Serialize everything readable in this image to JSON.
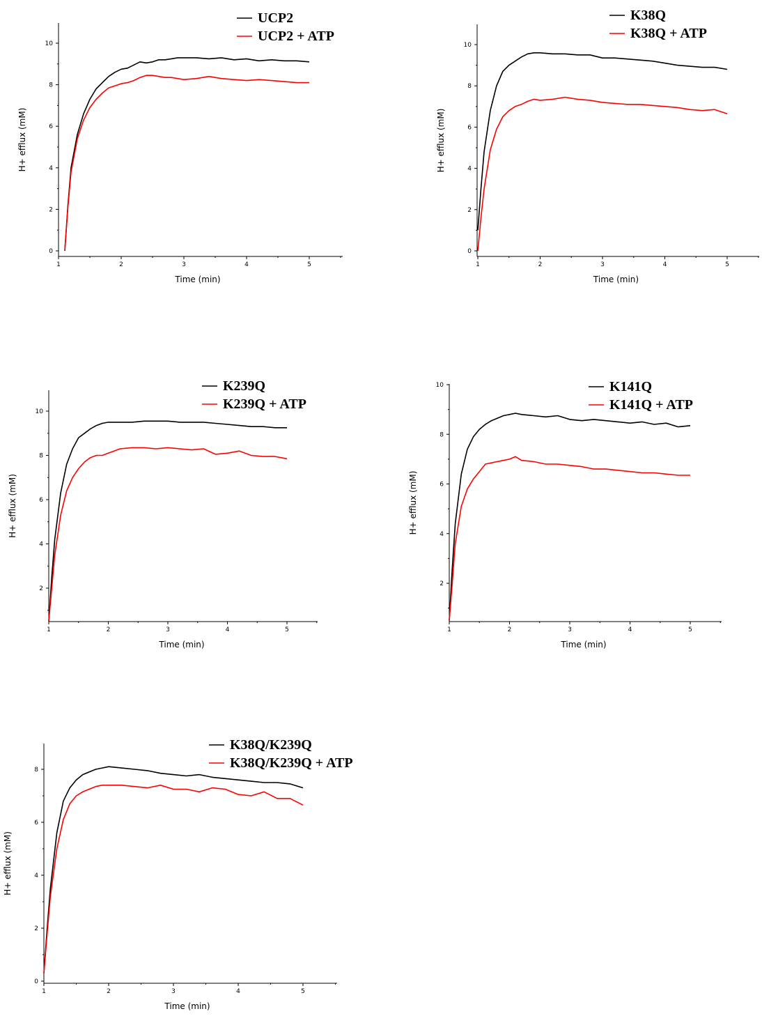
{
  "chart_data": [
    {
      "type": "line",
      "xlabel": "Time (min)",
      "ylabel": "H+ efflux (mM)",
      "xlim": [
        1,
        5.5
      ],
      "ylim": [
        0,
        11
      ],
      "xticks": [
        1,
        2,
        3,
        4,
        5
      ],
      "yticks": [
        0,
        2,
        4,
        6,
        8,
        10
      ],
      "legend_position": "top-right",
      "series": [
        {
          "name": "UCP2",
          "color": "#000000",
          "x": [
            1.1,
            1.15,
            1.2,
            1.3,
            1.4,
            1.5,
            1.6,
            1.7,
            1.8,
            1.9,
            2.0,
            2.1,
            2.2,
            2.3,
            2.4,
            2.5,
            2.6,
            2.7,
            2.8,
            2.9,
            3.0,
            3.2,
            3.4,
            3.6,
            3.8,
            4.0,
            4.2,
            4.4,
            4.6,
            4.8,
            5.0
          ],
          "y": [
            0,
            2.2,
            4.0,
            5.6,
            6.6,
            7.3,
            7.8,
            8.1,
            8.4,
            8.6,
            8.75,
            8.8,
            8.95,
            9.1,
            9.05,
            9.1,
            9.2,
            9.2,
            9.25,
            9.3,
            9.3,
            9.3,
            9.25,
            9.3,
            9.2,
            9.25,
            9.15,
            9.2,
            9.15,
            9.15,
            9.1
          ]
        },
        {
          "name": "UCP2 + ATP",
          "color": "#ff0000",
          "x": [
            1.1,
            1.15,
            1.2,
            1.3,
            1.4,
            1.5,
            1.6,
            1.7,
            1.8,
            1.9,
            2.0,
            2.1,
            2.2,
            2.3,
            2.4,
            2.5,
            2.6,
            2.7,
            2.8,
            2.9,
            3.0,
            3.2,
            3.4,
            3.6,
            3.8,
            4.0,
            4.2,
            4.4,
            4.6,
            4.8,
            5.0
          ],
          "y": [
            0,
            2.1,
            3.8,
            5.4,
            6.3,
            6.9,
            7.3,
            7.6,
            7.85,
            7.95,
            8.05,
            8.1,
            8.2,
            8.35,
            8.45,
            8.45,
            8.4,
            8.35,
            8.35,
            8.3,
            8.25,
            8.3,
            8.4,
            8.3,
            8.25,
            8.2,
            8.25,
            8.2,
            8.15,
            8.1,
            8.1
          ]
        }
      ]
    },
    {
      "type": "line",
      "xlabel": "Time (min)",
      "ylabel": "H+ efflux (mM)",
      "xlim": [
        1,
        5.5
      ],
      "ylim": [
        0,
        11
      ],
      "xticks": [
        1,
        2,
        3,
        4,
        5
      ],
      "yticks": [
        0,
        2,
        4,
        6,
        8,
        10
      ],
      "legend_position": "top-right",
      "series": [
        {
          "name": "K38Q",
          "color": "#000000",
          "x": [
            1.0,
            1.05,
            1.1,
            1.2,
            1.3,
            1.4,
            1.5,
            1.6,
            1.7,
            1.8,
            1.9,
            2.0,
            2.2,
            2.4,
            2.6,
            2.8,
            3.0,
            3.2,
            3.4,
            3.6,
            3.8,
            4.0,
            4.2,
            4.4,
            4.6,
            4.8,
            5.0
          ],
          "y": [
            1.0,
            3.0,
            4.8,
            6.8,
            8.0,
            8.7,
            9.0,
            9.2,
            9.4,
            9.55,
            9.6,
            9.6,
            9.55,
            9.55,
            9.5,
            9.5,
            9.35,
            9.35,
            9.3,
            9.25,
            9.2,
            9.1,
            9.0,
            8.95,
            8.9,
            8.9,
            8.8
          ]
        },
        {
          "name": "K38Q + ATP",
          "color": "#ff0000",
          "x": [
            1.0,
            1.05,
            1.1,
            1.2,
            1.3,
            1.4,
            1.5,
            1.6,
            1.7,
            1.8,
            1.9,
            2.0,
            2.2,
            2.4,
            2.6,
            2.8,
            3.0,
            3.2,
            3.4,
            3.6,
            3.8,
            4.0,
            4.2,
            4.4,
            4.6,
            4.8,
            5.0
          ],
          "y": [
            0,
            1.6,
            3.0,
            4.9,
            5.9,
            6.5,
            6.8,
            7.0,
            7.1,
            7.25,
            7.35,
            7.3,
            7.35,
            7.45,
            7.35,
            7.3,
            7.2,
            7.15,
            7.1,
            7.1,
            7.05,
            7.0,
            6.95,
            6.85,
            6.8,
            6.85,
            6.65
          ]
        }
      ]
    },
    {
      "type": "line",
      "xlabel": "Time (min)",
      "ylabel": "H+ efflux (mM)",
      "xlim": [
        1,
        5.5
      ],
      "ylim": [
        0.5,
        11
      ],
      "xticks": [
        1,
        2,
        3,
        4,
        5
      ],
      "yticks": [
        2,
        4,
        6,
        8,
        10
      ],
      "legend_position": "top-right",
      "series": [
        {
          "name": "K239Q",
          "color": "#000000",
          "x": [
            1.0,
            1.05,
            1.1,
            1.2,
            1.3,
            1.4,
            1.5,
            1.6,
            1.7,
            1.8,
            1.9,
            2.0,
            2.2,
            2.4,
            2.6,
            2.8,
            3.0,
            3.2,
            3.4,
            3.6,
            3.8,
            4.0,
            4.2,
            4.4,
            4.6,
            4.8,
            5.0
          ],
          "y": [
            0.5,
            2.5,
            4.2,
            6.3,
            7.6,
            8.3,
            8.8,
            9.0,
            9.2,
            9.35,
            9.45,
            9.5,
            9.5,
            9.5,
            9.55,
            9.55,
            9.55,
            9.5,
            9.5,
            9.5,
            9.45,
            9.4,
            9.35,
            9.3,
            9.3,
            9.25,
            9.25
          ]
        },
        {
          "name": "K239Q + ATP",
          "color": "#ff0000",
          "x": [
            1.0,
            1.05,
            1.1,
            1.2,
            1.3,
            1.4,
            1.5,
            1.6,
            1.7,
            1.8,
            1.9,
            2.0,
            2.2,
            2.4,
            2.6,
            2.8,
            3.0,
            3.2,
            3.4,
            3.6,
            3.8,
            4.0,
            4.2,
            4.4,
            4.6,
            4.8,
            5.0
          ],
          "y": [
            0.5,
            2.0,
            3.5,
            5.3,
            6.4,
            7.0,
            7.4,
            7.7,
            7.9,
            8.0,
            8.0,
            8.1,
            8.3,
            8.35,
            8.35,
            8.3,
            8.35,
            8.3,
            8.25,
            8.3,
            8.05,
            8.1,
            8.2,
            8.0,
            7.95,
            7.95,
            7.85
          ]
        }
      ]
    },
    {
      "type": "line",
      "xlabel": "Time (min)",
      "ylabel": "H+ efflux (mM)",
      "xlim": [
        1,
        5.5
      ],
      "ylim": [
        0.5,
        10
      ],
      "xticks": [
        1,
        2,
        3,
        4,
        5
      ],
      "yticks": [
        2,
        4,
        6,
        8,
        10
      ],
      "legend_position": "top-right",
      "series": [
        {
          "name": "K141Q",
          "color": "#000000",
          "x": [
            1.0,
            1.05,
            1.1,
            1.2,
            1.3,
            1.4,
            1.5,
            1.6,
            1.7,
            1.8,
            1.9,
            2.0,
            2.1,
            2.2,
            2.4,
            2.6,
            2.8,
            3.0,
            3.2,
            3.4,
            3.6,
            3.8,
            4.0,
            4.2,
            4.4,
            4.6,
            4.8,
            5.0
          ],
          "y": [
            0.5,
            2.6,
            4.4,
            6.4,
            7.4,
            7.9,
            8.2,
            8.4,
            8.55,
            8.65,
            8.75,
            8.8,
            8.85,
            8.8,
            8.75,
            8.7,
            8.75,
            8.6,
            8.55,
            8.6,
            8.55,
            8.5,
            8.45,
            8.5,
            8.4,
            8.45,
            8.3,
            8.35
          ]
        },
        {
          "name": "K141Q + ATP",
          "color": "#ff0000",
          "x": [
            1.0,
            1.05,
            1.1,
            1.2,
            1.3,
            1.4,
            1.5,
            1.6,
            1.7,
            1.8,
            1.9,
            2.0,
            2.1,
            2.2,
            2.4,
            2.6,
            2.8,
            3.0,
            3.2,
            3.4,
            3.6,
            3.8,
            4.0,
            4.2,
            4.4,
            4.6,
            4.8,
            5.0
          ],
          "y": [
            0.5,
            2.0,
            3.6,
            5.1,
            5.8,
            6.2,
            6.5,
            6.8,
            6.85,
            6.9,
            6.95,
            7.0,
            7.1,
            6.95,
            6.9,
            6.8,
            6.8,
            6.75,
            6.7,
            6.6,
            6.6,
            6.55,
            6.5,
            6.45,
            6.45,
            6.4,
            6.35,
            6.35
          ]
        }
      ]
    },
    {
      "type": "line",
      "xlabel": "Time (min)",
      "ylabel": "H+ efflux (mM)",
      "xlim": [
        1,
        5.5
      ],
      "ylim": [
        0,
        9
      ],
      "xticks": [
        1,
        2,
        3,
        4,
        5
      ],
      "yticks": [
        0,
        2,
        4,
        6,
        8
      ],
      "legend_position": "top-right",
      "series": [
        {
          "name": "K38Q/K239Q",
          "color": "#000000",
          "x": [
            1.0,
            1.05,
            1.1,
            1.2,
            1.3,
            1.4,
            1.5,
            1.6,
            1.7,
            1.8,
            1.9,
            2.0,
            2.2,
            2.4,
            2.6,
            2.8,
            3.0,
            3.2,
            3.4,
            3.6,
            3.8,
            4.0,
            4.2,
            4.4,
            4.6,
            4.8,
            5.0
          ],
          "y": [
            0.3,
            2.0,
            3.5,
            5.6,
            6.8,
            7.3,
            7.6,
            7.8,
            7.9,
            8.0,
            8.05,
            8.1,
            8.05,
            8.0,
            7.95,
            7.85,
            7.8,
            7.75,
            7.8,
            7.7,
            7.65,
            7.6,
            7.55,
            7.5,
            7.5,
            7.45,
            7.3
          ]
        },
        {
          "name": "K38Q/K239Q + ATP",
          "color": "#ff0000",
          "x": [
            1.0,
            1.05,
            1.1,
            1.2,
            1.3,
            1.4,
            1.5,
            1.6,
            1.7,
            1.8,
            1.9,
            2.0,
            2.2,
            2.4,
            2.6,
            2.8,
            3.0,
            3.2,
            3.4,
            3.6,
            3.8,
            4.0,
            4.2,
            4.4,
            4.6,
            4.8,
            5.0
          ],
          "y": [
            0.3,
            1.8,
            3.2,
            5.0,
            6.1,
            6.7,
            7.0,
            7.15,
            7.25,
            7.35,
            7.4,
            7.4,
            7.4,
            7.35,
            7.3,
            7.4,
            7.25,
            7.25,
            7.15,
            7.3,
            7.25,
            7.05,
            7.0,
            7.15,
            6.9,
            6.9,
            6.65
          ]
        }
      ]
    }
  ]
}
